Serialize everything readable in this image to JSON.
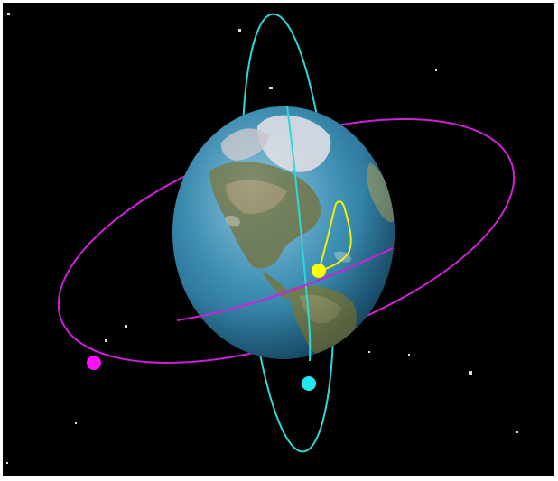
{
  "scene": {
    "background_color": "#000000",
    "frame_color": "#ffffff",
    "earth": {
      "ocean_color": "#3f93b8",
      "land_color": "#6b7a55",
      "ice_color": "#e8e8ec"
    },
    "orbits": [
      {
        "id": "polar-orbit",
        "color": "#2fd8d8",
        "satellite_color": "#20e8f0"
      },
      {
        "id": "equatorial-orbit",
        "color": "#d020d8",
        "satellite_color": "#ff10ff"
      },
      {
        "id": "molniya-orbit",
        "color": "#f0f000",
        "satellite_color": "#ffff00"
      }
    ],
    "star_color": "#dddddd"
  }
}
